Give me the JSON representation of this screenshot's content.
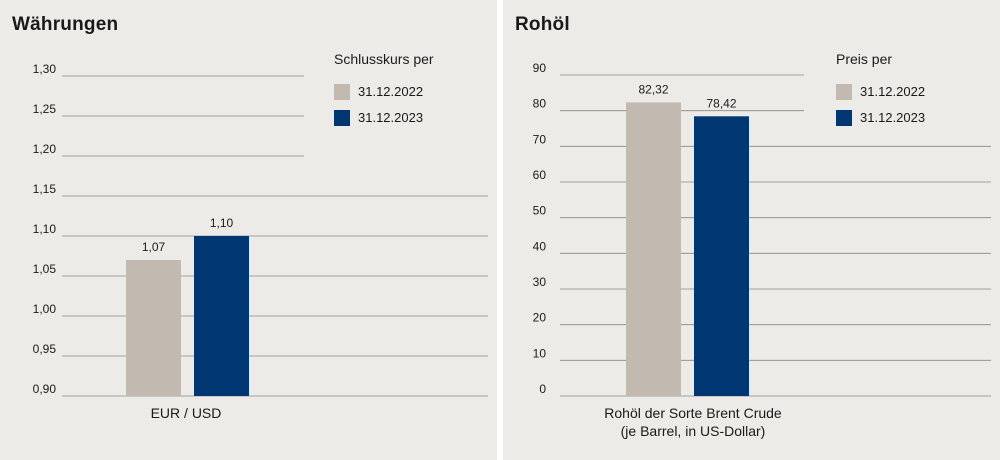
{
  "colors": {
    "series_2022": "#c2bab1",
    "series_2023": "#003672",
    "gridline": "#888888",
    "background": "#ecebe7"
  },
  "chart_data": [
    {
      "type": "bar",
      "title": "Währungen",
      "legend_title": "Schlusskurs per",
      "categories": [
        "EUR/USD"
      ],
      "series": [
        {
          "name": "31.12.2022",
          "values": [
            1.07
          ],
          "labels": [
            "1,07"
          ]
        },
        {
          "name": "31.12.2023",
          "values": [
            1.1
          ],
          "labels": [
            "1,10"
          ]
        }
      ],
      "ylim": [
        0.9,
        1.3
      ],
      "yticks": [
        0.9,
        0.95,
        1.0,
        1.05,
        1.1,
        1.15,
        1.2,
        1.25,
        1.3
      ],
      "ytick_labels": [
        "0,90",
        "0,95",
        "1,00",
        "1,05",
        "1,10",
        "1,15",
        "1,20",
        "1,25",
        "1,30"
      ],
      "xlabel_lines": [
        "EUR / USD"
      ],
      "legend_position": "top-right",
      "grid": true
    },
    {
      "type": "bar",
      "title": "Rohöl",
      "legend_title": "Preis per",
      "categories": [
        "Rohöl der Sorte Brent Crude (je Barrel, in US-Dollar)"
      ],
      "series": [
        {
          "name": "31.12.2022",
          "values": [
            82.32
          ],
          "labels": [
            "82,32"
          ]
        },
        {
          "name": "31.12.2023",
          "values": [
            78.42
          ],
          "labels": [
            "78,42"
          ]
        }
      ],
      "ylim": [
        0,
        90
      ],
      "yticks": [
        0,
        10,
        20,
        30,
        40,
        50,
        60,
        70,
        80,
        90
      ],
      "ytick_labels": [
        "0",
        "10",
        "20",
        "30",
        "40",
        "50",
        "60",
        "70",
        "80",
        "90"
      ],
      "xlabel_lines": [
        "Rohöl der Sorte Brent Crude",
        "(je Barrel, in US-Dollar)"
      ],
      "legend_position": "top-right",
      "grid": true
    }
  ]
}
